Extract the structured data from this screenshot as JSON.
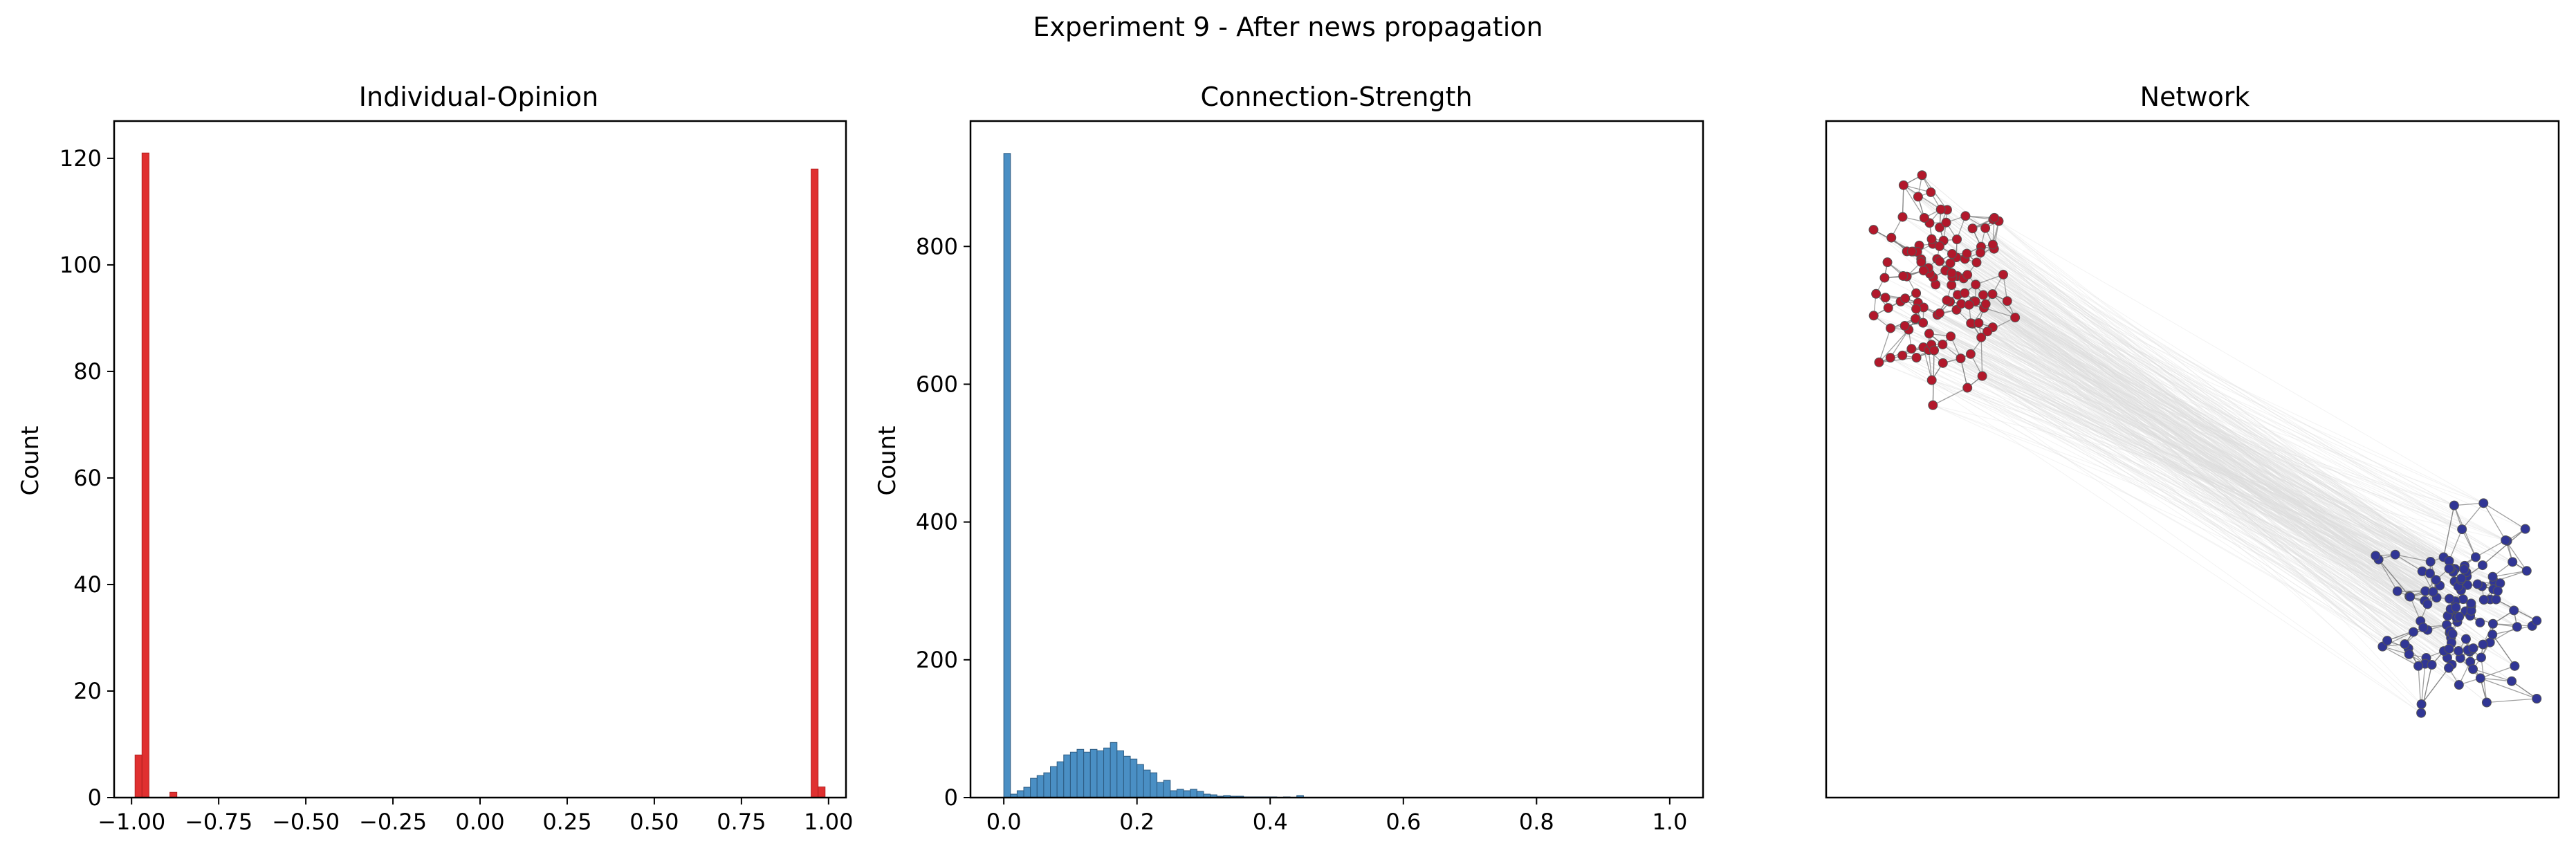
{
  "figure": {
    "suptitle": "Experiment 9 - After news propagation"
  },
  "chart_data": [
    {
      "type": "bar",
      "title": "Individual-Opinion",
      "xlabel": "",
      "ylabel": "Count",
      "xlim": [
        -1.05,
        1.05
      ],
      "ylim": [
        0,
        127
      ],
      "xticks": [
        -1.0,
        -0.75,
        -0.5,
        -0.25,
        0.0,
        0.25,
        0.5,
        0.75,
        1.0
      ],
      "xtick_labels": [
        "−1.00",
        "−0.75",
        "−0.50",
        "−0.25",
        "0.00",
        "0.25",
        "0.50",
        "0.75",
        "1.00"
      ],
      "yticks": [
        0,
        20,
        40,
        60,
        80,
        100,
        120
      ],
      "ytick_labels": [
        "0",
        "20",
        "40",
        "60",
        "80",
        "100",
        "120"
      ],
      "bin_width": 0.02,
      "bins": [
        {
          "x0": -0.99,
          "x1": -0.97,
          "value": 8
        },
        {
          "x0": -0.97,
          "x1": -0.95,
          "value": 121
        },
        {
          "x0": -0.89,
          "x1": -0.87,
          "value": 1
        },
        {
          "x0": 0.95,
          "x1": 0.97,
          "value": 118
        },
        {
          "x0": 0.97,
          "x1": 0.99,
          "value": 2
        }
      ],
      "color": "#e03030",
      "edge_color": "#b02020",
      "grid": false
    },
    {
      "type": "bar",
      "title": "Connection-Strength",
      "xlabel": "",
      "ylabel": "Count",
      "xlim": [
        -0.05,
        1.05
      ],
      "ylim": [
        0,
        982
      ],
      "xticks": [
        0.0,
        0.2,
        0.4,
        0.6,
        0.8,
        1.0
      ],
      "xtick_labels": [
        "0.0",
        "0.2",
        "0.4",
        "0.6",
        "0.8",
        "1.0"
      ],
      "yticks": [
        0,
        200,
        400,
        600,
        800
      ],
      "ytick_labels": [
        "0",
        "200",
        "400",
        "600",
        "800"
      ],
      "bin_width": 0.01,
      "bin_start": 0.0,
      "values": [
        935,
        5,
        10,
        15,
        28,
        32,
        36,
        45,
        52,
        62,
        66,
        70,
        66,
        70,
        68,
        72,
        80,
        68,
        60,
        56,
        48,
        40,
        36,
        22,
        25,
        10,
        12,
        10,
        12,
        9,
        5,
        4,
        2,
        3,
        2,
        2,
        1,
        1,
        1,
        1,
        1,
        0,
        1,
        0,
        3,
        0,
        0,
        0,
        0,
        0,
        0,
        0,
        0,
        0,
        0,
        0,
        0,
        0,
        0,
        0,
        0,
        0,
        0,
        0,
        0,
        0,
        0,
        0,
        0,
        0,
        0,
        0,
        0,
        0,
        0,
        0,
        0,
        0,
        0,
        0,
        0,
        0,
        0,
        0,
        0,
        0,
        0,
        0,
        0,
        0,
        0,
        0,
        0,
        0,
        0,
        0,
        0,
        0,
        0,
        0
      ],
      "color": "#4a8fc4",
      "edge_color": "#2c5a80",
      "grid": false
    },
    {
      "type": "scatter",
      "title": "Network",
      "xlabel": "",
      "ylabel": "",
      "axes_visible": false,
      "groups": [
        {
          "center": [
            0.16,
            0.75
          ],
          "spread": [
            0.11,
            0.17
          ],
          "count": 120,
          "color": "#b2182b"
        },
        {
          "center": [
            0.86,
            0.28
          ],
          "spread": [
            0.11,
            0.16
          ],
          "count": 120,
          "color": "#313695"
        }
      ],
      "intra_edge_color": "#808080",
      "inter_edge_color": "#dddddd",
      "grid": false
    }
  ]
}
